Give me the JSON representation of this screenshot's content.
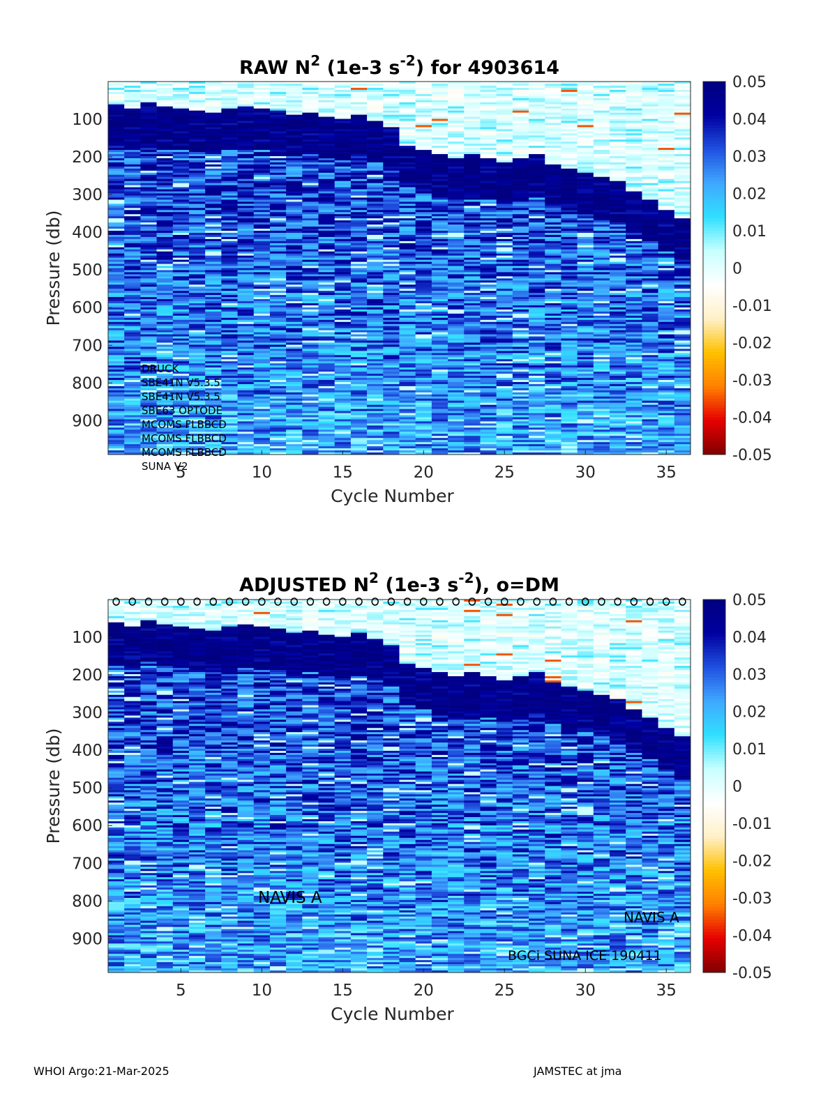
{
  "colors": {
    "colormap": [
      "#800000",
      "#e60000",
      "#ff8000",
      "#ffc000",
      "#fff0c8",
      "#ffffff",
      "#c8ffff",
      "#30e0ff",
      "#40a8ff",
      "#2050e0",
      "#0000a0",
      "#000080"
    ]
  },
  "chart_data": [
    {
      "type": "heatmap",
      "title_parts": [
        "RAW N",
        "2",
        " (1e-3 s",
        "-2",
        ") for 4903614"
      ],
      "xlabel": "Cycle Number",
      "ylabel": "Pressure (db)",
      "xlim": [
        1,
        36
      ],
      "ylim": [
        0,
        990
      ],
      "y_reversed": true,
      "x_ticks": [
        "5",
        "10",
        "15",
        "20",
        "25",
        "30",
        "35"
      ],
      "y_ticks": [
        "100",
        "200",
        "300",
        "400",
        "500",
        "600",
        "700",
        "800",
        "900"
      ],
      "colorbar_range": [
        -0.05,
        0.05
      ],
      "colorbar_ticks": [
        "0.05",
        "0.04",
        "0.03",
        "0.02",
        "0.01",
        "0",
        "-0.01",
        "-0.02",
        "-0.03",
        "-0.04",
        "-0.05"
      ],
      "mixed_layer_depth": [
        60,
        70,
        55,
        65,
        70,
        75,
        80,
        70,
        65,
        70,
        75,
        85,
        80,
        90,
        95,
        85,
        100,
        120,
        170,
        180,
        190,
        200,
        190,
        200,
        210,
        200,
        190,
        215,
        230,
        240,
        250,
        260,
        290,
        310,
        340,
        360
      ],
      "annotations": [
        "DRUCK",
        "SBE41N V5.3.5",
        "SBE41N V5.3.5",
        "SBE63 OPTODE",
        "MCOMS FLBBCD",
        "MCOMS FLBBCD",
        "MCOMS FLBBCD",
        "SUNA V2"
      ],
      "dm_markers": false
    },
    {
      "type": "heatmap",
      "title_parts": [
        "ADJUSTED N",
        "2",
        " (1e-3 s",
        "-2",
        "), o=DM"
      ],
      "xlabel": "Cycle Number",
      "ylabel": "Pressure (db)",
      "xlim": [
        1,
        36
      ],
      "ylim": [
        0,
        990
      ],
      "y_reversed": true,
      "x_ticks": [
        "5",
        "10",
        "15",
        "20",
        "25",
        "30",
        "35"
      ],
      "y_ticks": [
        "100",
        "200",
        "300",
        "400",
        "500",
        "600",
        "700",
        "800",
        "900"
      ],
      "colorbar_range": [
        -0.05,
        0.05
      ],
      "colorbar_ticks": [
        "0.05",
        "0.04",
        "0.03",
        "0.02",
        "0.01",
        "0",
        "-0.01",
        "-0.02",
        "-0.03",
        "-0.04",
        "-0.05"
      ],
      "mixed_layer_depth": [
        60,
        70,
        55,
        65,
        70,
        75,
        80,
        70,
        65,
        70,
        75,
        85,
        80,
        90,
        95,
        85,
        100,
        120,
        170,
        180,
        190,
        200,
        190,
        200,
        210,
        200,
        190,
        215,
        230,
        240,
        250,
        260,
        290,
        310,
        340,
        360
      ],
      "dm_cycles": [
        1,
        2,
        3,
        4,
        5,
        6,
        7,
        8,
        9,
        10,
        11,
        12,
        13,
        14,
        15,
        16,
        17,
        18,
        19,
        20,
        21,
        22,
        23,
        24,
        25,
        26,
        27,
        28,
        29,
        30,
        31,
        32,
        33,
        34,
        35,
        36
      ],
      "dm_marker": "o",
      "annotations": [],
      "text_labels": [
        "NAVIS A",
        "NAVIS A",
        "BGCi SUNA ICE 190411"
      ],
      "dm_markers": true
    }
  ],
  "footer": {
    "left": "WHOI Argo:21-Mar-2025",
    "right": "JAMSTEC at jma"
  }
}
